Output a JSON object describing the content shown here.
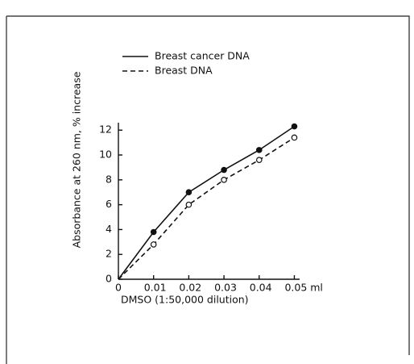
{
  "chart_data": {
    "type": "line",
    "x": [
      0,
      0.01,
      0.02,
      0.03,
      0.04,
      0.05
    ],
    "series": [
      {
        "name": "Breast cancer DNA",
        "color": "#111111",
        "dash": "solid",
        "marker": "filled",
        "values": [
          0,
          3.8,
          7.0,
          8.8,
          10.4,
          12.3
        ]
      },
      {
        "name": "Breast DNA",
        "color": "#111111",
        "dash": "dashed",
        "marker": "open",
        "values": [
          0,
          2.8,
          6.0,
          8.0,
          9.6,
          11.4
        ]
      }
    ],
    "xlabel": "DMSO (1:50,000 dilution)",
    "ylabel": "Absorbance at 260 nm, % increase",
    "xlim": [
      0,
      0.0515
    ],
    "ylim": [
      0,
      12.6
    ],
    "xticks": [
      0,
      0.01,
      0.02,
      0.03,
      0.04,
      {
        "value": 0.05,
        "label": "0.05 ml"
      }
    ],
    "yticks": [
      0,
      2,
      4,
      6,
      8,
      10,
      12
    ],
    "legend": "upper left",
    "grid": false
  }
}
